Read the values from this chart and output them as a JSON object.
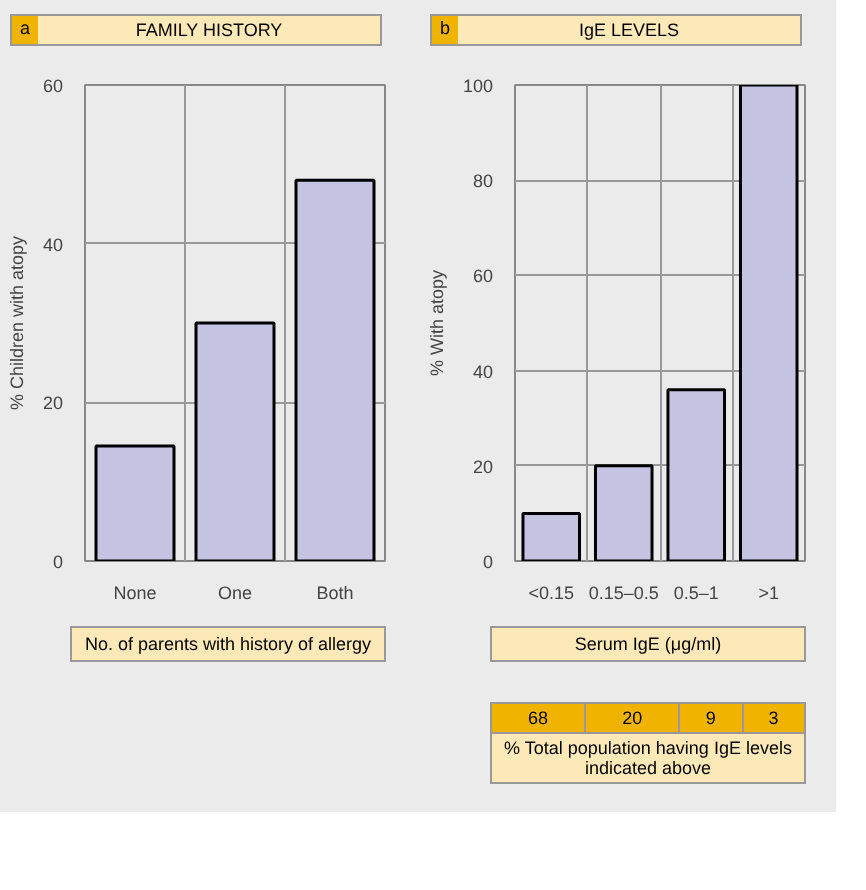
{
  "chart_data": [
    {
      "type": "bar",
      "title": "FAMILY HISTORY",
      "annotations": [
        "a"
      ],
      "xlabel": "No. of parents with history of allergy",
      "ylabel": "% Children with atopy",
      "categories": [
        "None",
        "One",
        "Both"
      ],
      "values": [
        14.5,
        30,
        48
      ],
      "color": "#c4c4e2",
      "ylim": [
        0,
        60
      ],
      "yticks": [
        0,
        20,
        40,
        60
      ],
      "grid": true
    },
    {
      "type": "bar",
      "title": "IgE LEVELS",
      "annotations": [
        "b",
        "68",
        "20",
        "9",
        "3",
        "% Total population having IgE levels indicated above"
      ],
      "xlabel": "Serum IgE (μg/ml)",
      "ylabel": "% With atopy",
      "categories": [
        "<0.15",
        "0.15–0.5",
        "0.5–1",
        ">1"
      ],
      "values": [
        10,
        20,
        36,
        100
      ],
      "color": "#c4c4e2",
      "ylim": [
        0,
        100
      ],
      "yticks": [
        0,
        20,
        40,
        60,
        80,
        100
      ],
      "grid": true
    }
  ]
}
